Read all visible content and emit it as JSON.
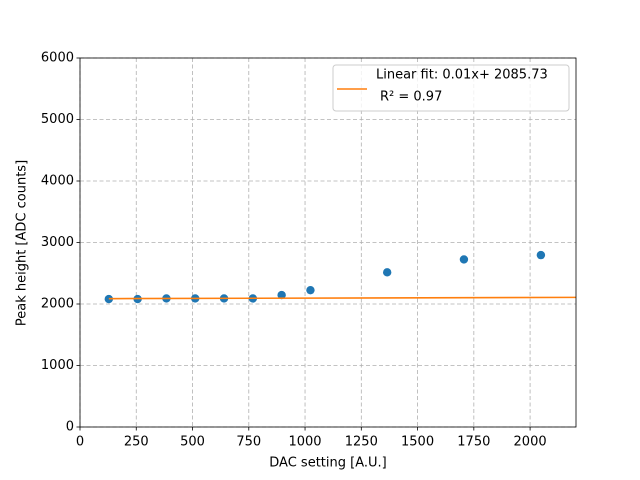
{
  "chart_data": {
    "type": "scatter",
    "x_label": "DAC setting [A.U.]",
    "y_label": "Peak height [ADC counts]",
    "xlim": [
      0,
      2204
    ],
    "ylim": [
      0,
      6000
    ],
    "xticks": [
      0,
      250,
      500,
      750,
      1000,
      1250,
      1500,
      1750,
      2000
    ],
    "yticks": [
      0,
      1000,
      2000,
      3000,
      4000,
      5000,
      6000
    ],
    "grid": true,
    "legend": "upper right",
    "series": [
      {
        "type": "scatter",
        "color": "#1f77b4",
        "x": [
          128,
          256,
          384,
          512,
          640,
          768,
          896,
          1024,
          1365,
          1706,
          2048
        ],
        "values": [
          2080,
          2080,
          2090,
          2090,
          2090,
          2090,
          2145,
          2225,
          2515,
          2725,
          2795
        ]
      },
      {
        "type": "line",
        "name": "Linear fit: 0.01x+ 2085.73",
        "name_line2": "R² = 0.97",
        "color": "#ff7f0e",
        "x": [
          128,
          2204
        ],
        "values": [
          2087.01,
          2107.77
        ]
      }
    ]
  }
}
